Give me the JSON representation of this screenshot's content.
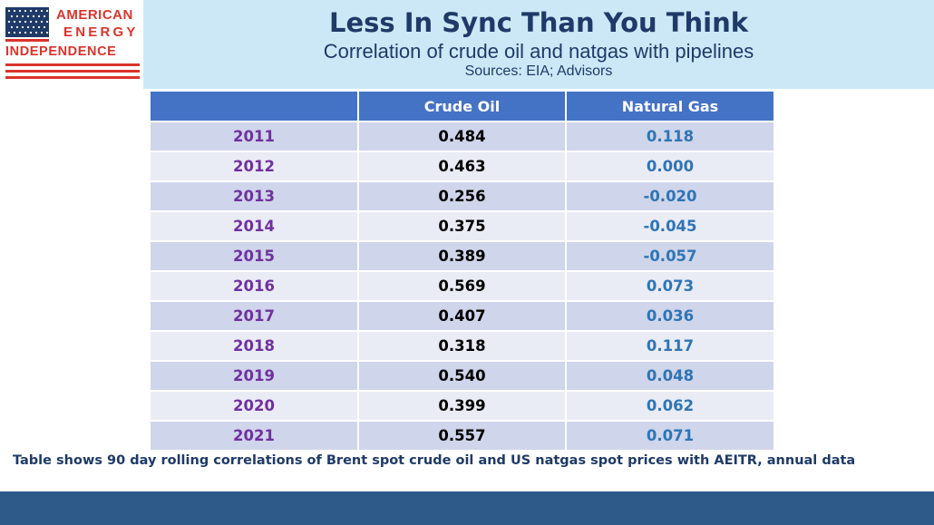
{
  "logo": {
    "line1": "AMERICAN",
    "line2": "ENERGY",
    "line3": "INDEPENDENCE",
    "icon": "us-flag-icon"
  },
  "header": {
    "title": "Less In Sync Than You Think",
    "subtitle": "Correlation of crude oil and natgas with pipelines",
    "sources": "Sources: EIA; Advisors"
  },
  "table": {
    "columns": [
      "",
      "Crude Oil",
      "Natural Gas"
    ],
    "rows": [
      {
        "year": "2011",
        "crude": "0.484",
        "gas": "0.118"
      },
      {
        "year": "2012",
        "crude": "0.463",
        "gas": "0.000"
      },
      {
        "year": "2013",
        "crude": "0.256",
        "gas": "-0.020"
      },
      {
        "year": "2014",
        "crude": "0.375",
        "gas": "-0.045"
      },
      {
        "year": "2015",
        "crude": "0.389",
        "gas": "-0.057"
      },
      {
        "year": "2016",
        "crude": "0.569",
        "gas": "0.073"
      },
      {
        "year": "2017",
        "crude": "0.407",
        "gas": "0.036"
      },
      {
        "year": "2018",
        "crude": "0.318",
        "gas": "0.117"
      },
      {
        "year": "2019",
        "crude": "0.540",
        "gas": "0.048"
      },
      {
        "year": "2020",
        "crude": "0.399",
        "gas": "0.062"
      },
      {
        "year": "2021",
        "crude": "0.557",
        "gas": "0.071"
      }
    ]
  },
  "footnote": "Table shows 90 day rolling correlations of Brent spot crude oil and US natgas spot prices with AEITR, annual data",
  "colors": {
    "header_bg": "#4472c4",
    "banner_bg": "#cce8f7",
    "year_text": "#7030a0",
    "gas_text": "#2e75b6",
    "logo_red": "#d9342b",
    "footer_bar": "#2e5a8a"
  }
}
